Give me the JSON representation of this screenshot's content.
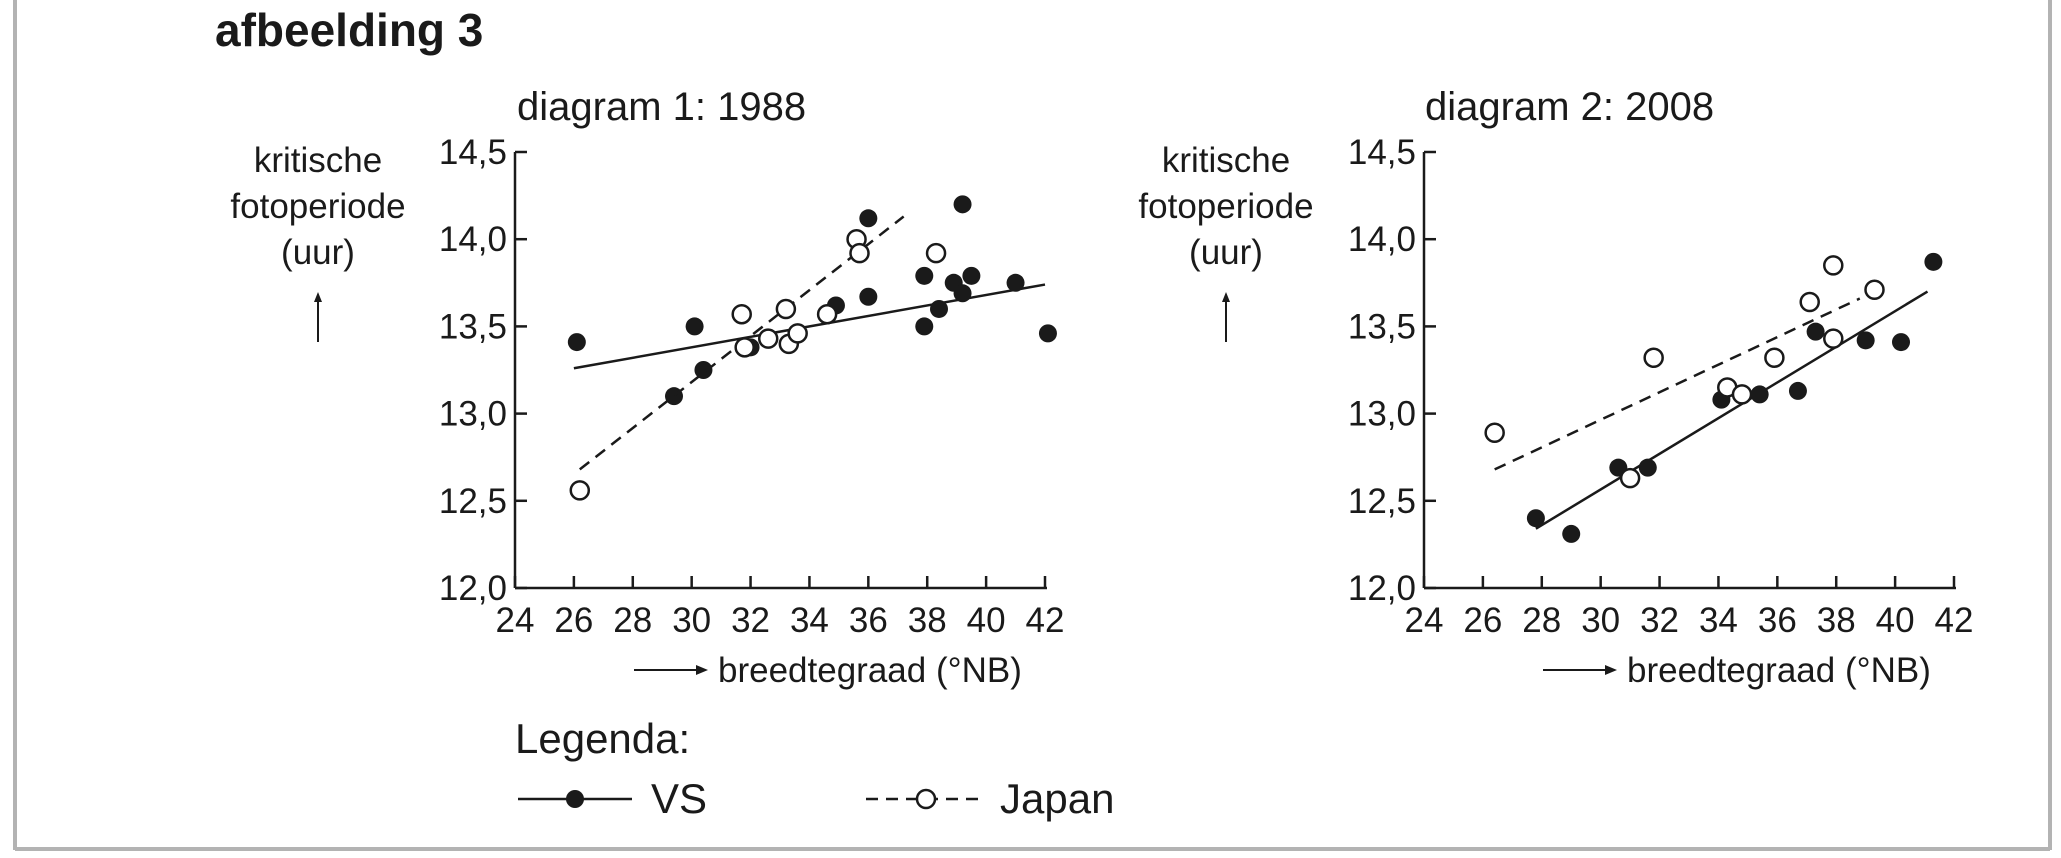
{
  "figure_title": "afbeelding 3",
  "legend": {
    "title": "Legenda:",
    "vs_label": "VS",
    "japan_label": "Japan"
  },
  "colors": {
    "ink": "#1a1a1a",
    "frame": "#b3b3b3",
    "background": "#ffffff"
  },
  "chart_data": [
    {
      "type": "scatter",
      "title": "diagram 1: 1988",
      "ylabel_lines": [
        "kritische",
        "fotoperiode",
        "(uur)"
      ],
      "ylabel_arrow": "↑",
      "xlabel": "breedtegraad (°NB)",
      "xlabel_arrow": "⟶",
      "xlim": [
        24,
        42
      ],
      "ylim": [
        12.0,
        14.5
      ],
      "xticks": [
        24,
        26,
        28,
        30,
        32,
        34,
        36,
        38,
        40,
        42
      ],
      "yticks": [
        12.0,
        12.5,
        13.0,
        13.5,
        14.0,
        14.5
      ],
      "ytick_labels": [
        "12,0",
        "12,5",
        "13,0",
        "13,5",
        "14,0",
        "14,5"
      ],
      "series": [
        {
          "name": "VS",
          "marker": "filled-circle",
          "line": "solid",
          "points": [
            [
              26.1,
              13.41
            ],
            [
              29.4,
              13.1
            ],
            [
              30.1,
              13.5
            ],
            [
              30.4,
              13.25
            ],
            [
              32.0,
              13.38
            ],
            [
              34.9,
              13.62
            ],
            [
              36.0,
              14.12
            ],
            [
              36.0,
              13.67
            ],
            [
              37.9,
              13.79
            ],
            [
              37.9,
              13.5
            ],
            [
              38.4,
              13.6
            ],
            [
              38.9,
              13.75
            ],
            [
              39.2,
              14.2
            ],
            [
              39.2,
              13.69
            ],
            [
              39.5,
              13.79
            ],
            [
              41.0,
              13.75
            ],
            [
              42.1,
              13.46
            ]
          ],
          "fit": [
            [
              26.0,
              13.26
            ],
            [
              42.0,
              13.74
            ]
          ]
        },
        {
          "name": "Japan",
          "marker": "open-circle",
          "line": "dashed",
          "points": [
            [
              26.2,
              12.56
            ],
            [
              31.7,
              13.57
            ],
            [
              31.8,
              13.38
            ],
            [
              32.6,
              13.43
            ],
            [
              33.2,
              13.6
            ],
            [
              33.3,
              13.4
            ],
            [
              33.6,
              13.46
            ],
            [
              34.6,
              13.57
            ],
            [
              35.6,
              14.0
            ],
            [
              35.7,
              13.92
            ],
            [
              38.3,
              13.92
            ]
          ],
          "fit": [
            [
              26.2,
              12.68
            ],
            [
              37.2,
              14.13
            ]
          ]
        }
      ]
    },
    {
      "type": "scatter",
      "title": "diagram 2: 2008",
      "ylabel_lines": [
        "kritische",
        "fotoperiode",
        "(uur)"
      ],
      "ylabel_arrow": "↑",
      "xlabel": "breedtegraad (°NB)",
      "xlabel_arrow": "⟶",
      "xlim": [
        24,
        42
      ],
      "ylim": [
        12.0,
        14.5
      ],
      "xticks": [
        24,
        26,
        28,
        30,
        32,
        34,
        36,
        38,
        40,
        42
      ],
      "yticks": [
        12.0,
        12.5,
        13.0,
        13.5,
        14.0,
        14.5
      ],
      "ytick_labels": [
        "12,0",
        "12,5",
        "13,0",
        "13,5",
        "14,0",
        "14,5"
      ],
      "series": [
        {
          "name": "VS",
          "marker": "filled-circle",
          "line": "solid",
          "points": [
            [
              27.8,
              12.4
            ],
            [
              29.0,
              12.31
            ],
            [
              30.6,
              12.69
            ],
            [
              31.6,
              12.69
            ],
            [
              34.1,
              13.08
            ],
            [
              35.4,
              13.11
            ],
            [
              36.7,
              13.13
            ],
            [
              37.3,
              13.47
            ],
            [
              39.0,
              13.42
            ],
            [
              40.2,
              13.41
            ],
            [
              41.3,
              13.87
            ]
          ],
          "fit": [
            [
              27.8,
              12.34
            ],
            [
              41.1,
              13.7
            ]
          ]
        },
        {
          "name": "Japan",
          "marker": "open-circle",
          "line": "dashed",
          "points": [
            [
              26.4,
              12.89
            ],
            [
              31.0,
              12.63
            ],
            [
              31.8,
              13.32
            ],
            [
              34.3,
              13.15
            ],
            [
              34.8,
              13.11
            ],
            [
              35.9,
              13.32
            ],
            [
              37.1,
              13.64
            ],
            [
              37.9,
              13.43
            ],
            [
              37.9,
              13.85
            ],
            [
              39.3,
              13.71
            ]
          ],
          "fit": [
            [
              26.4,
              12.68
            ],
            [
              38.8,
              13.66
            ]
          ]
        }
      ]
    }
  ]
}
